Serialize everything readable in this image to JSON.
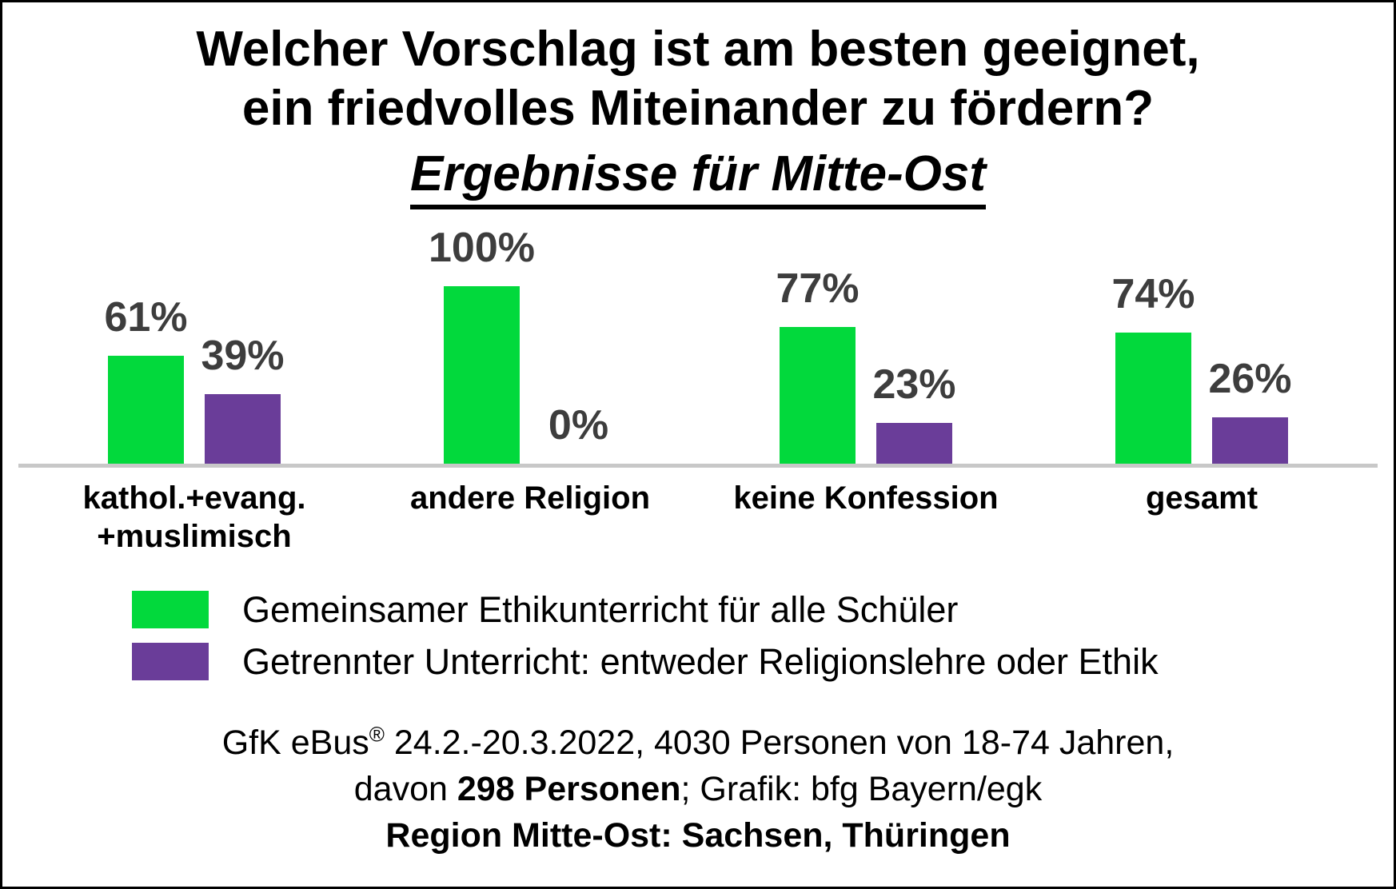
{
  "header": {
    "title_line1": "Welcher Vorschlag ist am besten geeignet,",
    "title_line2": "ein friedvolles Miteinander zu fördern?",
    "subtitle": "Ergebnisse für Mitte-Ost"
  },
  "chart_data": {
    "type": "bar",
    "title": "Welcher Vorschlag ist am besten geeignet, ein friedvolles Miteinander zu fördern?",
    "subtitle": "Ergebnisse für Mitte-Ost",
    "categories": [
      [
        "kathol.+evang.",
        "+muslimisch"
      ],
      [
        "andere Religion"
      ],
      [
        "keine Konfession"
      ],
      [
        "gesamt"
      ]
    ],
    "series": [
      {
        "name": "Gemeinsamer Ethikunterricht für alle Schüler",
        "color": "#02d93c",
        "values": [
          61,
          100,
          77,
          74
        ]
      },
      {
        "name": "Getrennter Unterricht: entweder Religionslehre oder Ethik",
        "color": "#6a3d99",
        "values": [
          39,
          0,
          23,
          26
        ]
      }
    ],
    "value_suffix": "%",
    "ylim": [
      0,
      100
    ],
    "grid": false,
    "legend_position": "bottom",
    "value_label_color": "#3d3d3d",
    "baseline_color": "#c8c8c8"
  },
  "footer": {
    "line1_pre": "GfK eBus",
    "line1_sup": "®",
    "line1_rest": " 24.2.-20.3.2022, 4030 Personen von 18-74 Jahren,",
    "line2_pre": "davon ",
    "line2_bold": "298 Personen",
    "line2_rest": "; Grafik: bfg Bayern/egk",
    "line3": "Region Mitte-Ost: Sachsen, Thüringen"
  }
}
